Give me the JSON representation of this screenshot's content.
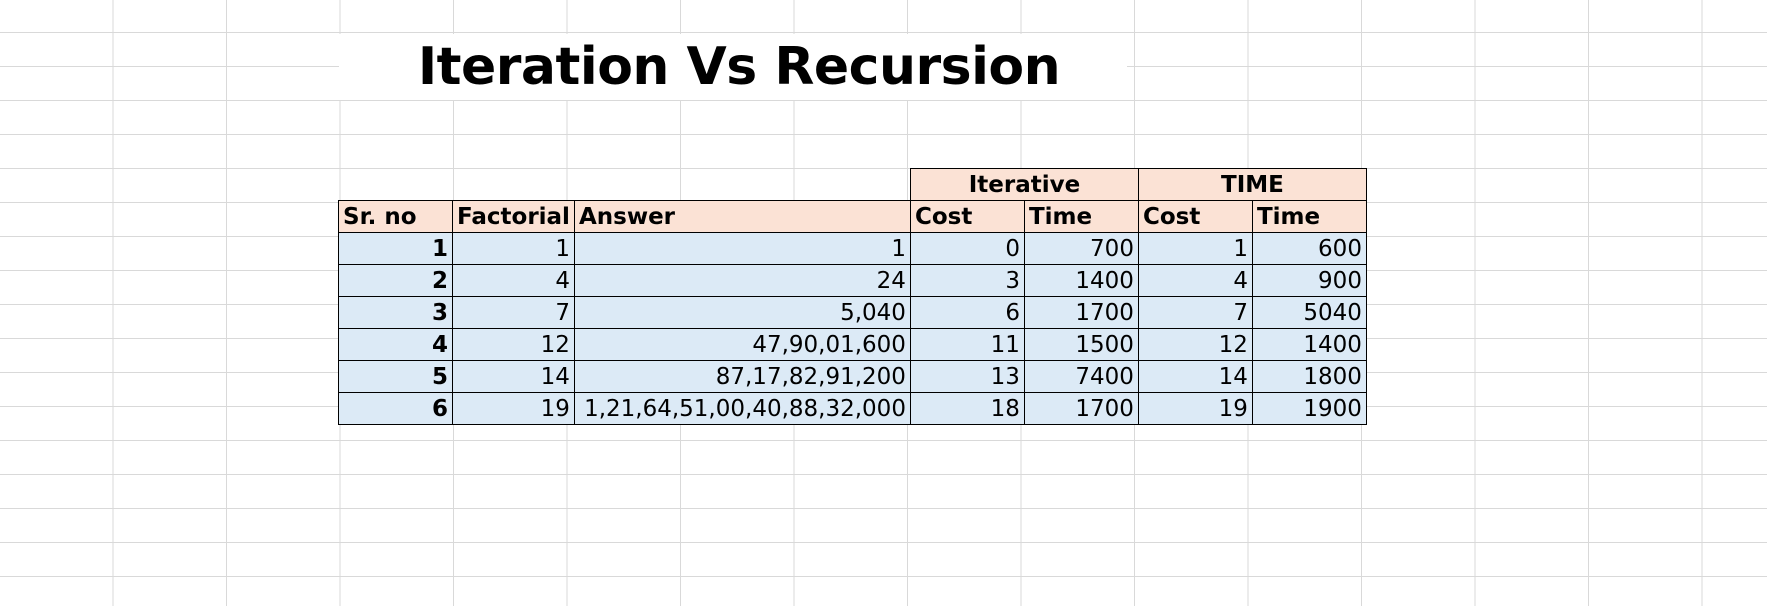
{
  "title": "Iteration Vs Recursion",
  "table": {
    "group_headers": {
      "iterative": "Iterative",
      "time": "TIME"
    },
    "columns": [
      "Sr. no",
      "Factorial",
      "Answer",
      "Cost",
      "Time",
      "Cost",
      "Time"
    ],
    "rows": [
      [
        "1",
        "1",
        "1",
        "0",
        "700",
        "1",
        "600"
      ],
      [
        "2",
        "4",
        "24",
        "3",
        "1400",
        "4",
        "900"
      ],
      [
        "3",
        "7",
        "5,040",
        "6",
        "1700",
        "7",
        "5040"
      ],
      [
        "4",
        "12",
        "47,90,01,600",
        "11",
        "1500",
        "12",
        "1400"
      ],
      [
        "5",
        "14",
        "87,17,82,91,200",
        "13",
        "7400",
        "14",
        "1800"
      ],
      [
        "6",
        "19",
        "1,21,64,51,00,40,88,32,000",
        "18",
        "1700",
        "19",
        "1900"
      ]
    ]
  },
  "colors": {
    "header_fill": "#fbe2d5",
    "body_fill": "#dceaf6",
    "gridline": "#d9d9d9"
  }
}
